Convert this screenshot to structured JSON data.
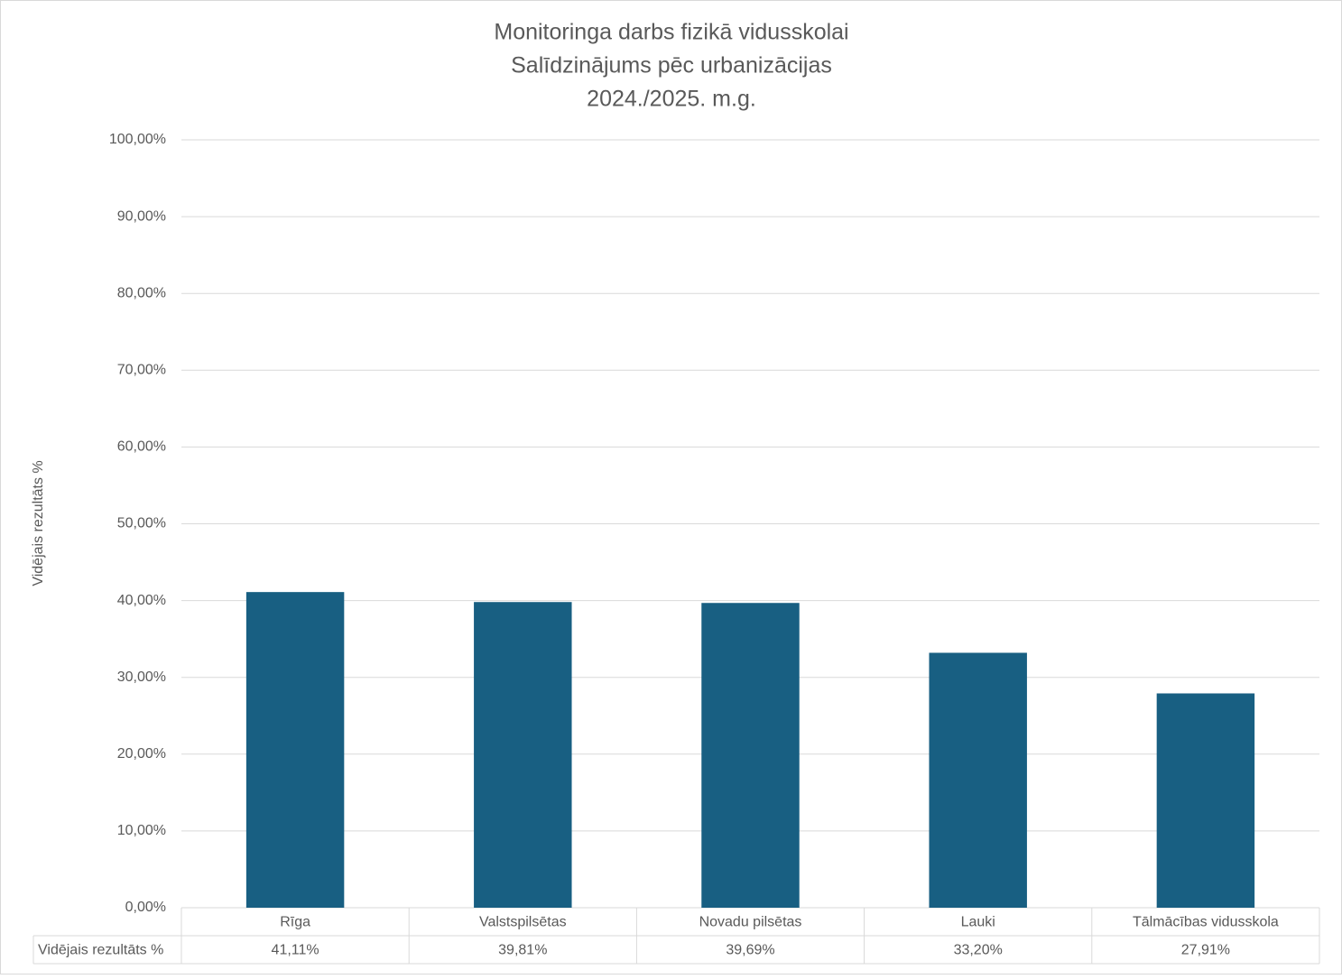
{
  "chart_data": {
    "type": "bar",
    "title": [
      "Monitoringa darbs fizikā vidusskolai",
      "Salīdzinājums pēc urbanizācijas",
      "2024./2025. m.g."
    ],
    "y_label": "Vidējais rezultāts %",
    "categories": [
      "Rīga",
      "Valstspilsētas",
      "Novadu pilsētas",
      "Lauki",
      "Tālmācības vidusskola"
    ],
    "series": [
      {
        "name": "Vidējais rezultāts %",
        "color": "#185f82",
        "values": [
          41.11,
          39.81,
          39.69,
          33.2,
          27.91
        ],
        "value_labels": [
          "41,11%",
          "39,81%",
          "39,69%",
          "33,20%",
          "27,91%"
        ]
      }
    ],
    "ylim": [
      0,
      100
    ],
    "yticks": [
      {
        "value": 0,
        "label": "0,00%"
      },
      {
        "value": 10,
        "label": "10,00%"
      },
      {
        "value": 20,
        "label": "20,00%"
      },
      {
        "value": 30,
        "label": "30,00%"
      },
      {
        "value": 40,
        "label": "40,00%"
      },
      {
        "value": 50,
        "label": "50,00%"
      },
      {
        "value": 60,
        "label": "60,00%"
      },
      {
        "value": 70,
        "label": "70,00%"
      },
      {
        "value": 80,
        "label": "80,00%"
      },
      {
        "value": 90,
        "label": "90,00%"
      },
      {
        "value": 100,
        "label": "100,00%"
      }
    ],
    "grid": true,
    "data_table": true
  }
}
